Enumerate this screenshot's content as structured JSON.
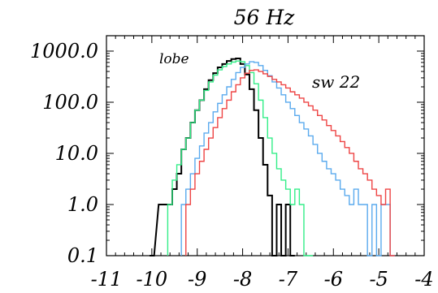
{
  "chart_data": {
    "type": "line",
    "title": "56 Hz",
    "xlabel": "",
    "ylabel": "",
    "x_ticks": [
      "-11",
      "-10",
      "-9",
      "-8",
      "-7",
      "-6",
      "-5",
      "-4"
    ],
    "y_ticks": [
      "0.1",
      "1.0",
      "10.0",
      "100.0",
      "1000.0"
    ],
    "xlim": [
      -11,
      -4
    ],
    "ylim": [
      0.1,
      2000
    ],
    "y_scale": "log",
    "grid": false,
    "annotations": [
      {
        "text": "lobe",
        "color": "#000000"
      },
      {
        "text": "sw 22",
        "color": "#22d466"
      }
    ],
    "series": [
      {
        "color": "#000000",
        "x": [
          -10.0,
          -9.8,
          -9.6,
          -9.5,
          -9.4,
          -9.3,
          -9.2,
          -9.1,
          -9.0,
          -8.9,
          -8.8,
          -8.7,
          -8.6,
          -8.5,
          -8.4,
          -8.3,
          -8.2,
          -8.1,
          -8.0,
          -7.9,
          -7.8,
          -7.7,
          -7.6,
          -7.5,
          -7.4,
          -7.3,
          -7.2,
          -7.1,
          -7.0,
          -6.9
        ],
        "y": [
          0.1,
          1,
          1,
          2,
          4,
          12,
          20,
          40,
          70,
          110,
          180,
          270,
          370,
          480,
          560,
          640,
          700,
          720,
          560,
          350,
          180,
          70,
          20,
          6,
          1.5,
          0.1,
          1,
          0.1,
          1,
          0.1
        ]
      },
      {
        "color": "#33ee88",
        "x": [
          -9.6,
          -9.5,
          -9.4,
          -9.3,
          -9.2,
          -9.1,
          -9.0,
          -8.9,
          -8.8,
          -8.7,
          -8.6,
          -8.5,
          -8.4,
          -8.3,
          -8.2,
          -8.1,
          -8.0,
          -7.9,
          -7.8,
          -7.7,
          -7.6,
          -7.5,
          -7.4,
          -7.3,
          -7.2,
          -7.1,
          -7.0,
          -6.9,
          -6.8,
          -6.7,
          -6.6,
          -6.5
        ],
        "y": [
          1,
          3,
          6,
          12,
          20,
          40,
          70,
          110,
          170,
          250,
          340,
          430,
          500,
          560,
          610,
          640,
          620,
          520,
          380,
          230,
          110,
          50,
          20,
          10,
          5,
          3,
          2,
          1,
          2,
          1,
          0.1,
          0.1
        ]
      },
      {
        "color": "#5aaaee",
        "x": [
          -9.3,
          -9.2,
          -9.1,
          -9.0,
          -8.9,
          -8.8,
          -8.7,
          -8.6,
          -8.5,
          -8.4,
          -8.3,
          -8.2,
          -8.1,
          -8.0,
          -7.9,
          -7.8,
          -7.7,
          -7.6,
          -7.5,
          -7.4,
          -7.3,
          -7.2,
          -7.1,
          -7.0,
          -6.9,
          -6.8,
          -6.7,
          -6.6,
          -6.5,
          -6.4,
          -6.3,
          -6.2,
          -6.1,
          -6.0,
          -5.9,
          -5.8,
          -5.7,
          -5.6,
          -5.5,
          -5.4,
          -5.3,
          -5.2,
          -5.1,
          -5.0,
          -4.9,
          -4.8,
          -4.7
        ],
        "y": [
          1,
          2,
          4,
          8,
          14,
          25,
          40,
          65,
          95,
          140,
          200,
          280,
          380,
          480,
          560,
          620,
          600,
          520,
          420,
          330,
          250,
          190,
          140,
          100,
          75,
          55,
          40,
          30,
          22,
          15,
          10,
          7,
          5,
          4,
          3,
          2,
          1.5,
          1,
          2,
          1,
          1,
          0.1,
          1,
          0.1,
          1,
          1,
          0.1
        ]
      },
      {
        "color": "#ee4444",
        "x": [
          -9.2,
          -9.1,
          -9.0,
          -8.9,
          -8.8,
          -8.7,
          -8.6,
          -8.5,
          -8.4,
          -8.3,
          -8.2,
          -8.1,
          -8.0,
          -7.9,
          -7.8,
          -7.7,
          -7.6,
          -7.5,
          -7.4,
          -7.3,
          -7.2,
          -7.1,
          -7.0,
          -6.9,
          -6.8,
          -6.7,
          -6.6,
          -6.5,
          -6.4,
          -6.3,
          -6.2,
          -6.1,
          -6.0,
          -5.9,
          -5.8,
          -5.7,
          -5.6,
          -5.5,
          -5.4,
          -5.3,
          -5.2,
          -5.1,
          -5.0,
          -4.9,
          -4.8,
          -4.7
        ],
        "y": [
          1,
          2,
          4,
          7,
          12,
          20,
          32,
          50,
          75,
          110,
          160,
          220,
          300,
          370,
          420,
          430,
          400,
          360,
          320,
          280,
          250,
          220,
          190,
          160,
          140,
          120,
          100,
          85,
          70,
          55,
          45,
          35,
          28,
          22,
          17,
          13,
          10,
          7,
          5,
          4,
          3,
          2,
          1.5,
          1,
          2,
          0.1
        ]
      }
    ]
  }
}
